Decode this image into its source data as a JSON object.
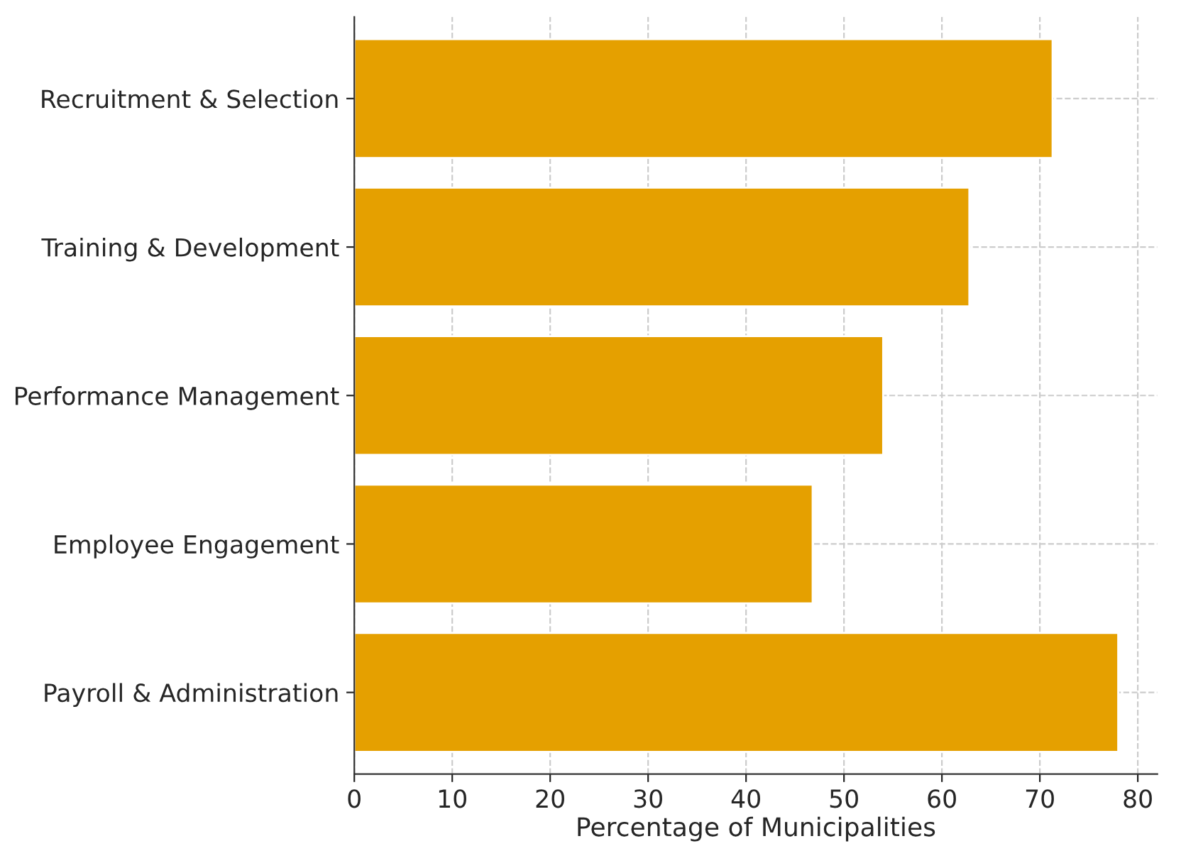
{
  "chart_data": {
    "type": "bar",
    "orientation": "horizontal",
    "xlabel": "Percentage of Municipalities",
    "categories": [
      "Recruitment & Selection",
      "Training & Development",
      "Performance Management",
      "Employee Engagement",
      "Payroll & Administration"
    ],
    "values": [
      71.3,
      62.8,
      54,
      46.8,
      78
    ],
    "color": "#e5a000",
    "xlim": [
      0,
      82
    ],
    "xticks": [
      0,
      10,
      20,
      30,
      40,
      50,
      60,
      70,
      80
    ],
    "grid": true
  }
}
